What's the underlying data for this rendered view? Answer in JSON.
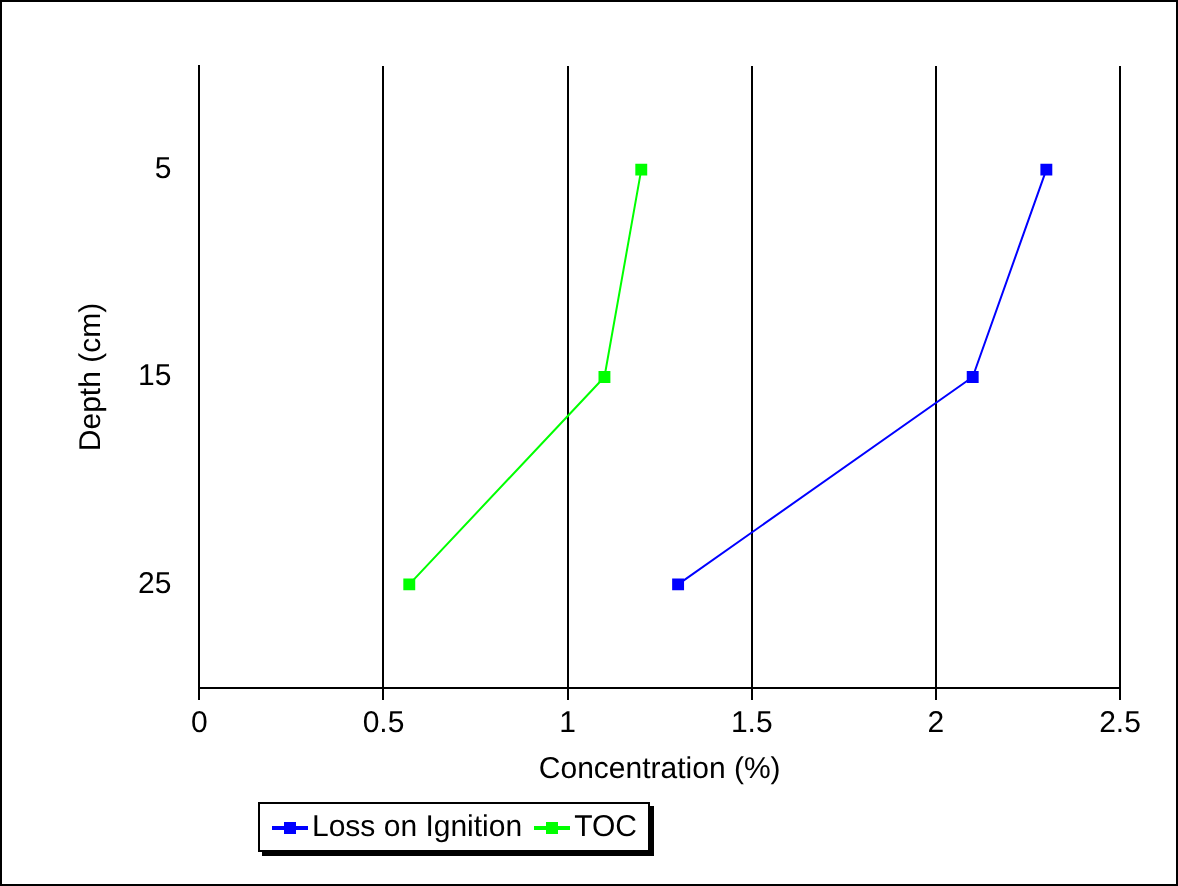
{
  "chart_data": {
    "type": "line",
    "xlabel": "Concentration (%)",
    "ylabel": "Depth (cm)",
    "xlim": [
      0,
      2.5
    ],
    "xticks": [
      0,
      0.5,
      1,
      1.5,
      2,
      2.5
    ],
    "ylim": [
      30,
      0
    ],
    "yticks": [
      5,
      15,
      25
    ],
    "grid": "x",
    "legend": "bottom",
    "marker": "square",
    "line_style": "solid",
    "series": [
      {
        "name": "Loss on Ignition",
        "color": "#0000ff",
        "x": [
          2.3,
          2.1,
          1.3
        ],
        "values": [
          5,
          15,
          25
        ]
      },
      {
        "name": "TOC",
        "color": "#00ff00",
        "x": [
          1.2,
          1.1,
          0.57
        ],
        "values": [
          5,
          15,
          25
        ]
      }
    ]
  }
}
